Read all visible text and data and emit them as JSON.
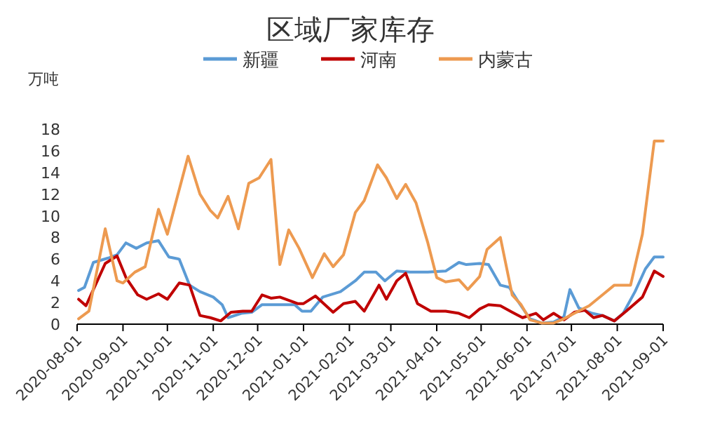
{
  "chart_data": {
    "type": "line",
    "title": "区域厂家库存",
    "ylabel": "万吨",
    "xlim": [
      "2020-08-01",
      "2021-09-01"
    ],
    "xticks": [
      "2020-08-01",
      "2020-09-01",
      "2020-10-01",
      "2020-11-01",
      "2020-12-01",
      "2021-01-01",
      "2021-02-01",
      "2021-03-01",
      "2021-04-01",
      "2021-05-01",
      "2021-06-01",
      "2021-07-01",
      "2021-08-01",
      "2021-09-01"
    ],
    "ylim": [
      0,
      18
    ],
    "yticks": [
      0,
      2,
      4,
      6,
      8,
      10,
      12,
      14,
      16,
      18
    ],
    "grid": false,
    "legend": "top",
    "marker": "none",
    "line_style": "solid",
    "series": [
      {
        "name": "新疆",
        "color": "#5b9bd5",
        "x": [
          "2020-08-02",
          "2020-08-06",
          "2020-08-12",
          "2020-08-22",
          "2020-08-28",
          "2020-09-03",
          "2020-09-10",
          "2020-09-17",
          "2020-09-25",
          "2020-10-02",
          "2020-10-09",
          "2020-10-16",
          "2020-10-23",
          "2020-11-01",
          "2020-11-07",
          "2020-11-11",
          "2020-11-20",
          "2020-11-27",
          "2020-12-04",
          "2020-12-13",
          "2020-12-26",
          "2020-12-31",
          "2021-01-06",
          "2021-01-14",
          "2021-01-26",
          "2021-02-05",
          "2021-02-11",
          "2021-02-19",
          "2021-02-25",
          "2021-03-05",
          "2021-03-14",
          "2021-03-26",
          "2021-04-07",
          "2021-04-16",
          "2021-04-21",
          "2021-04-30",
          "2021-05-06",
          "2021-05-14",
          "2021-05-20",
          "2021-05-26",
          "2021-06-03",
          "2021-06-11",
          "2021-06-19",
          "2021-06-26",
          "2021-06-30",
          "2021-07-06",
          "2021-07-15",
          "2021-07-22",
          "2021-07-30",
          "2021-08-05",
          "2021-08-13",
          "2021-08-20",
          "2021-08-26",
          "2021-09-01"
        ],
        "values": [
          3.1,
          3.4,
          5.7,
          6.1,
          6.4,
          7.5,
          7,
          7.5,
          7.7,
          6.2,
          6,
          3.6,
          3,
          2.5,
          1.8,
          0.6,
          1.0,
          1.1,
          1.8,
          1.8,
          1.8,
          1.2,
          1.2,
          2.5,
          3.0,
          4.0,
          4.8,
          4.8,
          4.0,
          4.9,
          4.8,
          4.8,
          4.9,
          5.7,
          5.5,
          5.6,
          5.5,
          3.6,
          3.4,
          2.1,
          0.5,
          0.1,
          0.2,
          0.7,
          3.2,
          1.5,
          1.0,
          0.8,
          0.3,
          1.0,
          3.0,
          5.1,
          6.2,
          6.2
        ]
      },
      {
        "name": "河南",
        "color": "#c00000",
        "x": [
          "2020-08-02",
          "2020-08-07",
          "2020-08-12",
          "2020-08-20",
          "2020-08-28",
          "2020-09-03",
          "2020-09-11",
          "2020-09-17",
          "2020-09-25",
          "2020-10-01",
          "2020-10-09",
          "2020-10-16",
          "2020-10-23",
          "2020-10-30",
          "2020-11-06",
          "2020-11-13",
          "2020-11-21",
          "2020-11-27",
          "2020-12-04",
          "2020-12-10",
          "2020-12-16",
          "2020-12-28",
          "2021-01-01",
          "2021-01-09",
          "2021-01-21",
          "2021-01-28",
          "2021-02-05",
          "2021-02-11",
          "2021-02-21",
          "2021-02-26",
          "2021-03-05",
          "2021-03-11",
          "2021-03-19",
          "2021-03-28",
          "2021-04-07",
          "2021-04-16",
          "2021-04-23",
          "2021-04-30",
          "2021-05-06",
          "2021-05-14",
          "2021-05-22",
          "2021-05-29",
          "2021-06-07",
          "2021-06-12",
          "2021-06-19",
          "2021-06-26",
          "2021-07-03",
          "2021-07-10",
          "2021-07-16",
          "2021-07-22",
          "2021-07-30",
          "2021-08-07",
          "2021-08-18",
          "2021-08-26",
          "2021-09-01"
        ],
        "values": [
          2.3,
          1.7,
          3.2,
          5.6,
          6.3,
          4.3,
          2.7,
          2.3,
          2.8,
          2.3,
          3.8,
          3.6,
          0.8,
          0.6,
          0.3,
          1.1,
          1.2,
          1.2,
          2.7,
          2.4,
          2.5,
          1.9,
          1.9,
          2.6,
          1.1,
          1.9,
          2.1,
          1.2,
          3.6,
          2.3,
          4.0,
          4.7,
          1.9,
          1.2,
          1.2,
          1.0,
          0.6,
          1.4,
          1.8,
          1.7,
          1.1,
          0.6,
          1.0,
          0.4,
          1.0,
          0.4,
          1.1,
          1.3,
          0.6,
          0.8,
          0.3,
          1.2,
          2.5,
          4.9,
          4.4
        ]
      },
      {
        "name": "内蒙古",
        "color": "#ed9a50",
        "x": [
          "2020-08-02",
          "2020-08-09",
          "2020-08-20",
          "2020-08-28",
          "2020-09-01",
          "2020-09-09",
          "2020-09-16",
          "2020-09-25",
          "2020-10-01",
          "2020-10-15",
          "2020-10-23",
          "2020-10-30",
          "2020-11-04",
          "2020-11-11",
          "2020-11-18",
          "2020-11-25",
          "2020-12-02",
          "2020-12-10",
          "2020-12-16",
          "2020-12-22",
          "2020-12-29",
          "2021-01-07",
          "2021-01-15",
          "2021-01-21",
          "2021-01-28",
          "2021-02-05",
          "2021-02-11",
          "2021-02-20",
          "2021-02-26",
          "2021-03-05",
          "2021-03-11",
          "2021-03-18",
          "2021-03-26",
          "2021-04-01",
          "2021-04-07",
          "2021-04-16",
          "2021-04-22",
          "2021-04-30",
          "2021-05-05",
          "2021-05-14",
          "2021-05-22",
          "2021-05-28",
          "2021-06-03",
          "2021-06-11",
          "2021-06-19",
          "2021-06-26",
          "2021-07-03",
          "2021-07-13",
          "2021-07-22",
          "2021-07-30",
          "2021-08-10",
          "2021-08-18",
          "2021-08-26",
          "2021-09-01"
        ],
        "values": [
          0.5,
          1.2,
          8.8,
          4,
          3.8,
          4.8,
          5.3,
          10.6,
          8.3,
          15.5,
          12,
          10.5,
          9.8,
          11.8,
          8.8,
          13,
          13.5,
          15.2,
          5.5,
          8.7,
          7,
          4.3,
          6.5,
          5.3,
          6.4,
          10.3,
          11.4,
          14.7,
          13.5,
          11.6,
          12.9,
          11.2,
          7.5,
          4.3,
          3.9,
          4.1,
          3.2,
          4.4,
          6.9,
          8,
          2.7,
          1.8,
          0.4,
          0.1,
          0.1,
          0.5,
          1,
          1.7,
          2.7,
          3.6,
          3.6,
          8.3,
          16.9,
          16.9
        ]
      }
    ]
  }
}
